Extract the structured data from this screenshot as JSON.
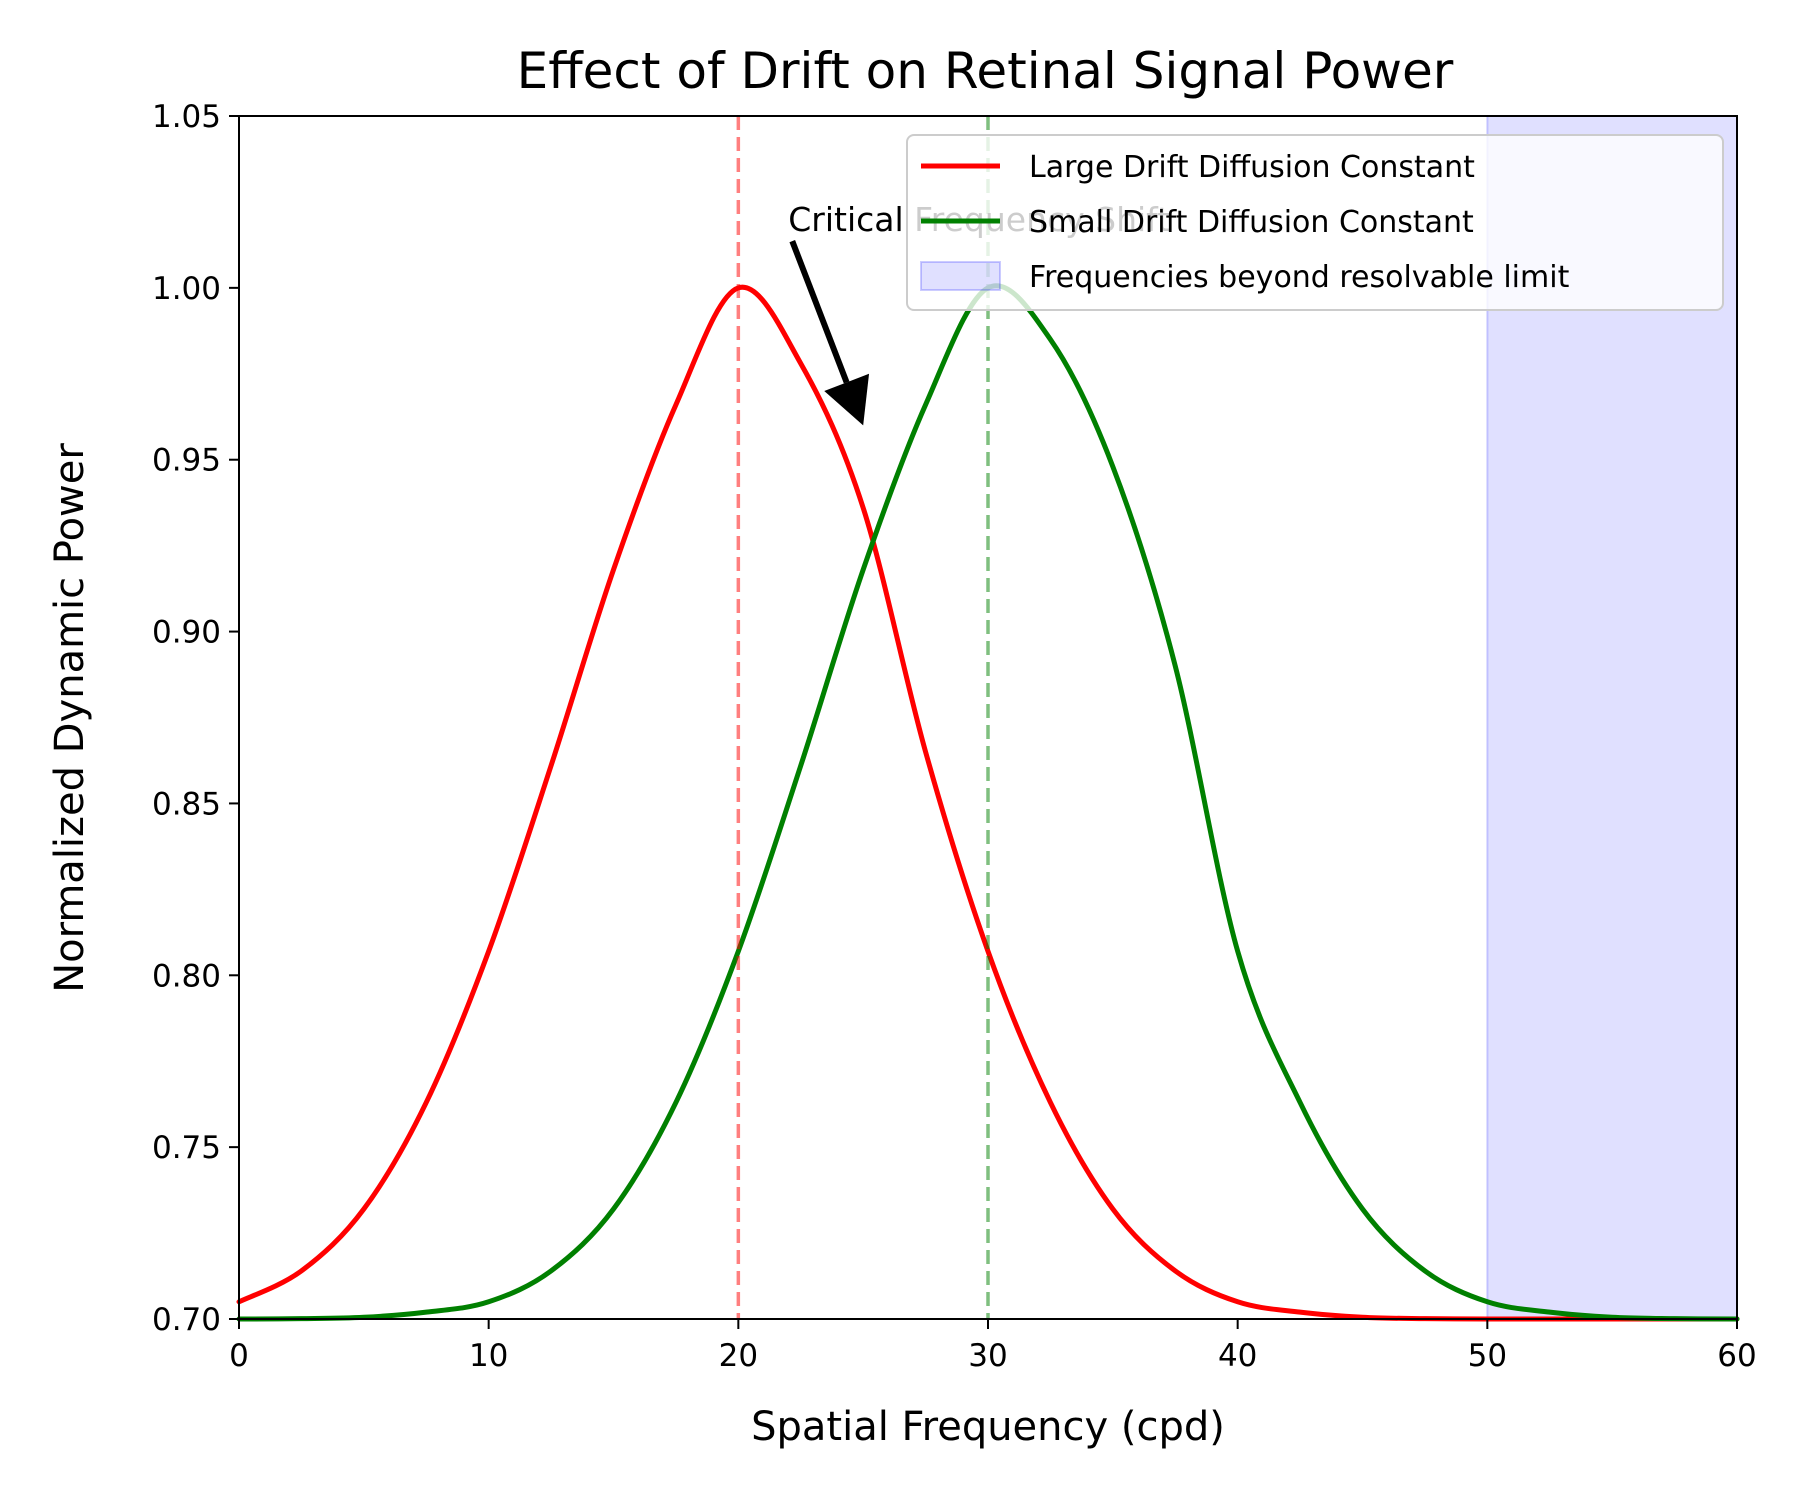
{
  "chart_data": {
    "type": "line",
    "title": "Effect of Drift on Retinal Signal Power",
    "xlabel": "Spatial Frequency (cpd)",
    "ylabel": "Normalized Dynamic Power",
    "xlim": [
      0,
      60
    ],
    "ylim": [
      0.7,
      1.05
    ],
    "x_ticks": [
      "0",
      "10",
      "20",
      "30",
      "40",
      "50",
      "60"
    ],
    "y_ticks": [
      "0.70",
      "0.75",
      "0.80",
      "0.85",
      "0.90",
      "0.95",
      "1.00",
      "1.05"
    ],
    "grid": false,
    "legend_position": "top-right",
    "series": [
      {
        "name": "Large Drift Diffusion Constant",
        "color": "#ff0000",
        "x": [
          0,
          2.5,
          5,
          7.5,
          10,
          12.5,
          15,
          17.5,
          20,
          22.5,
          25,
          27.5,
          30,
          32.5,
          35,
          37.5,
          40,
          42.5,
          45,
          47.5,
          50,
          52.5,
          55,
          57.5,
          60
        ],
        "y": [
          0.705,
          0.714,
          0.732,
          0.763,
          0.807,
          0.861,
          0.918,
          0.966,
          1.0,
          0.978,
          0.936,
          0.865,
          0.807,
          0.763,
          0.732,
          0.714,
          0.705,
          0.702,
          0.7005,
          0.7001,
          0.7,
          0.7,
          0.7,
          0.7,
          0.7
        ]
      },
      {
        "name": "Small Drift Diffusion Constant",
        "color": "#008000",
        "x": [
          0,
          2.5,
          5,
          7.5,
          10,
          12.5,
          15,
          17.5,
          20,
          22.5,
          25,
          27.5,
          30,
          32.5,
          35,
          37.5,
          40,
          42.5,
          45,
          47.5,
          50,
          52.5,
          55,
          57.5,
          60
        ],
        "y": [
          0.7,
          0.7001,
          0.7005,
          0.702,
          0.705,
          0.714,
          0.732,
          0.763,
          0.807,
          0.861,
          0.918,
          0.966,
          1.0,
          0.985,
          0.948,
          0.89,
          0.807,
          0.763,
          0.732,
          0.714,
          0.705,
          0.702,
          0.7005,
          0.7001,
          0.7
        ]
      }
    ],
    "vlines": [
      {
        "x": 20,
        "color": "#ff0000",
        "style": "dashed",
        "alpha": 0.5
      },
      {
        "x": 30,
        "color": "#008000",
        "style": "dashed",
        "alpha": 0.5
      }
    ],
    "shaded_region": {
      "label": "Frequencies beyond resolvable limit",
      "x_start": 50,
      "x_end": 60,
      "color": "#0000ff",
      "alpha": 0.12
    },
    "annotation": {
      "text": "Critical Frequency Shift",
      "text_x": 22,
      "text_y": 1.02,
      "arrow_to_x": 25,
      "arrow_to_y": 0.96
    }
  }
}
